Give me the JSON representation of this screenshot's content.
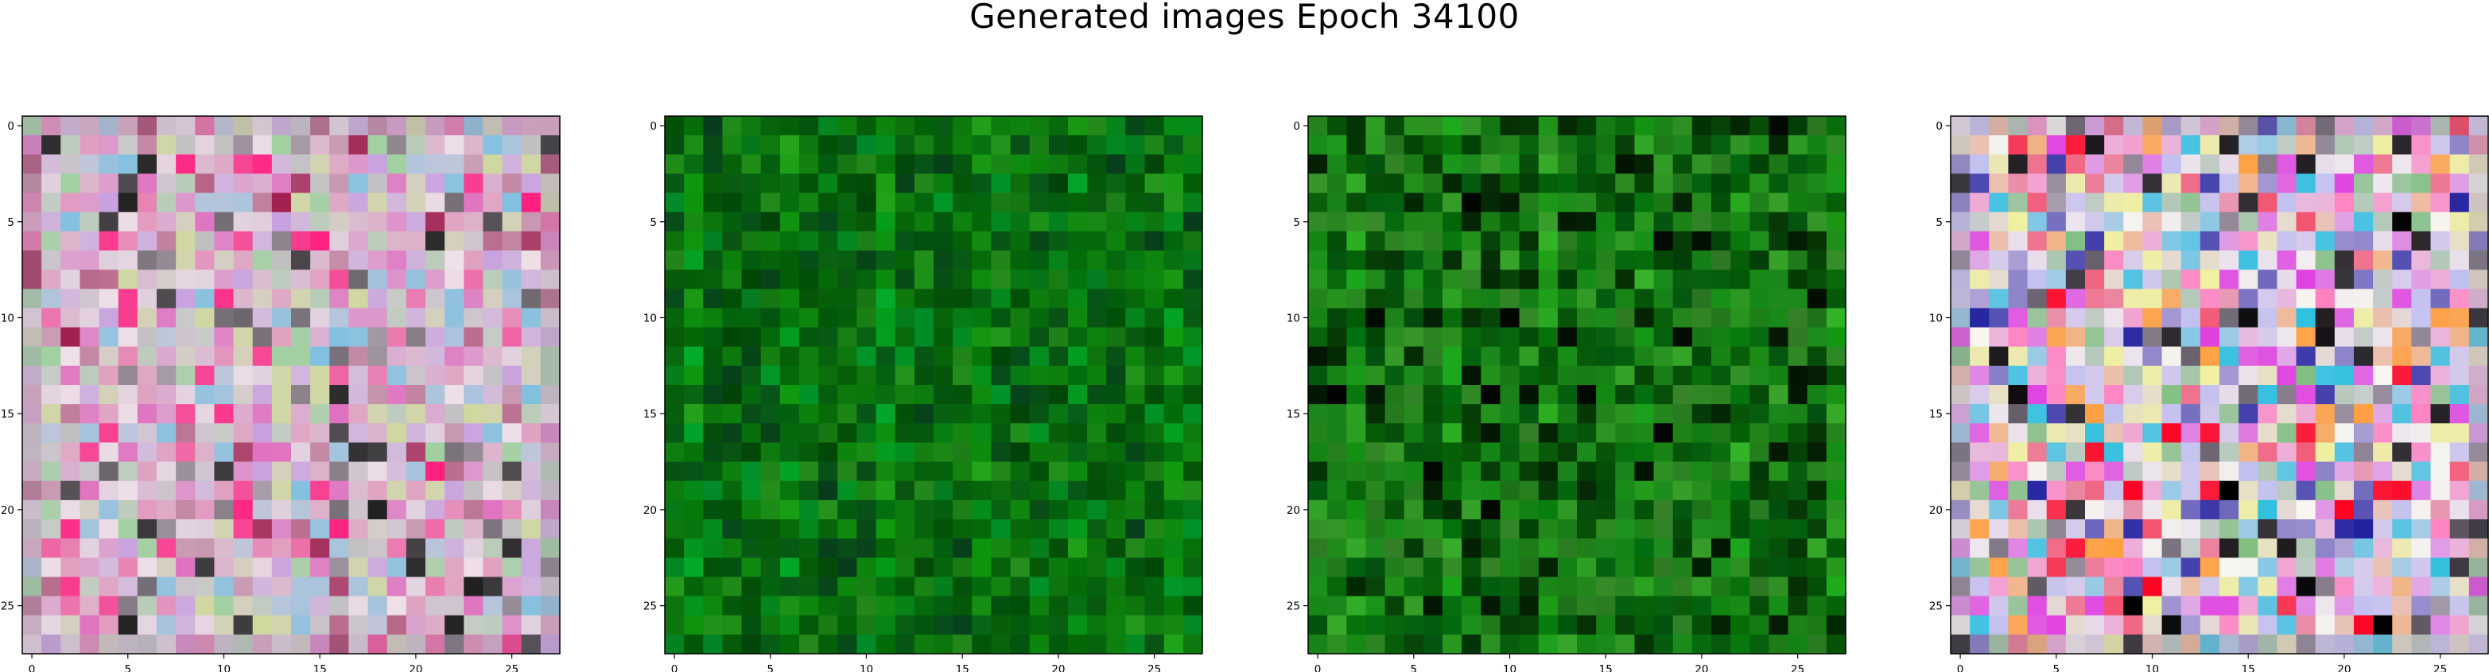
{
  "figure": {
    "suptitle": "Generated images Epoch 34100"
  },
  "chart_data": [
    {
      "type": "heatmap",
      "name": "generated-image-1",
      "palette": "pastel-colorful-noise",
      "grid": [
        28,
        28
      ],
      "xlim": [
        -0.5,
        27.5
      ],
      "ylim": [
        27.5,
        -0.5
      ],
      "xticks": [
        "0",
        "5",
        "10",
        "15",
        "20",
        "25"
      ],
      "yticks": [
        "0",
        "5",
        "10",
        "15",
        "20",
        "25"
      ],
      "colors": {
        "base": "#d8c8d8",
        "accents": [
          "#e070c0",
          "#c8a0e0",
          "#a0d0a0",
          "#d0d8a0",
          "#80c0e0",
          "#f0e0e8",
          "#c0c0c0",
          "#e0a0c0",
          "#ff2080",
          "#202020",
          "#a02050"
        ]
      }
    },
    {
      "type": "heatmap",
      "name": "generated-image-2",
      "palette": "green-noise",
      "grid": [
        28,
        28
      ],
      "xlim": [
        -0.5,
        27.5
      ],
      "ylim": [
        27.5,
        -0.5
      ],
      "xticks": [
        "0",
        "5",
        "10",
        "15",
        "20",
        "25"
      ],
      "yticks": [
        "0",
        "5",
        "10",
        "15",
        "20",
        "25"
      ],
      "colors": {
        "base": "#0a7a0a",
        "accents": [
          "#005a10",
          "#109010",
          "#2aa020",
          "#004a08",
          "#00a030",
          "#064020"
        ]
      }
    },
    {
      "type": "heatmap",
      "name": "generated-image-3",
      "palette": "green-noise",
      "grid": [
        28,
        28
      ],
      "xlim": [
        -0.5,
        27.5
      ],
      "ylim": [
        27.5,
        -0.5
      ],
      "xticks": [
        "0",
        "5",
        "10",
        "15",
        "20",
        "25"
      ],
      "yticks": [
        "0",
        "5",
        "10",
        "15",
        "20",
        "25"
      ],
      "colors": {
        "base": "#0c7c0c",
        "accents": [
          "#005a10",
          "#22a022",
          "#40b030",
          "#003a06",
          "#000000",
          "#409030"
        ]
      }
    },
    {
      "type": "heatmap",
      "name": "generated-image-4",
      "palette": "vivid-colorful-noise",
      "grid": [
        28,
        28
      ],
      "xlim": [
        -0.5,
        27.5
      ],
      "ylim": [
        27.5,
        -0.5
      ],
      "xticks": [
        "0",
        "5",
        "10",
        "15",
        "20",
        "25"
      ],
      "yticks": [
        "0",
        "5",
        "10",
        "15",
        "20",
        "25"
      ],
      "colors": {
        "base": "#e0d0e8",
        "accents": [
          "#ff0020",
          "#e040e0",
          "#30c0e0",
          "#f0f0a0",
          "#2020a0",
          "#000000",
          "#ffa040",
          "#80c080",
          "#c0c0f0",
          "#ff80c0",
          "#f8f8f0"
        ]
      }
    }
  ]
}
